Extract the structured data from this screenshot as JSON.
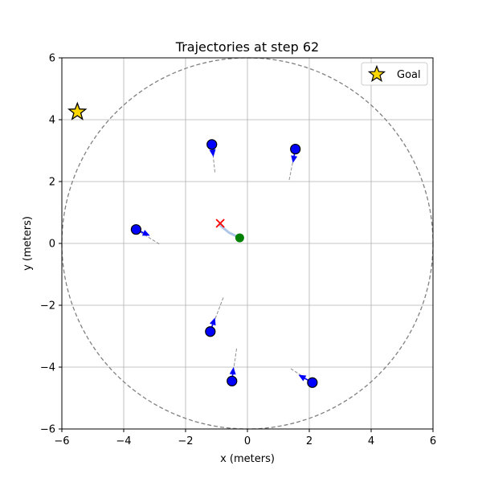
{
  "chart_data": {
    "type": "scatter",
    "title": "Trajectories at step 62",
    "xlabel": "x (meters)",
    "ylabel": "y (meters)",
    "xlim": [
      -6,
      6
    ],
    "ylim": [
      -6,
      6
    ],
    "xticks": [
      -6,
      -4,
      -2,
      0,
      2,
      4,
      6
    ],
    "yticks": [
      -6,
      -4,
      -2,
      0,
      2,
      4,
      6
    ],
    "xtick_labels": [
      "−6",
      "−4",
      "−2",
      "0",
      "2",
      "4",
      "6"
    ],
    "ytick_labels": [
      "−6",
      "−4",
      "−2",
      "0",
      "2",
      "4",
      "6"
    ],
    "grid": true,
    "legend": {
      "position": "top-right",
      "entries": [
        {
          "label": "Goal",
          "marker": "star",
          "color": "#ffd700"
        }
      ]
    },
    "boundary_circle": {
      "center": [
        0,
        0
      ],
      "radius": 6,
      "style": "dashed",
      "color": "#808080"
    },
    "goal": {
      "x": -5.5,
      "y": 4.25,
      "color": "#ffd700"
    },
    "ego_agent": {
      "x": -0.25,
      "y": 0.18,
      "color": "#008000",
      "trail": [
        [
          -0.9,
          0.6
        ],
        [
          -0.6,
          0.35
        ],
        [
          -0.25,
          0.18
        ]
      ],
      "trail_color": "#aec7e8"
    },
    "target_marker": {
      "x": -0.88,
      "y": 0.65,
      "color": "#ff0000",
      "marker": "x"
    },
    "agents": [
      {
        "x": -1.15,
        "y": 3.2,
        "vx": 0.05,
        "vy": -0.4,
        "trail_start": [
          -1.05,
          2.3
        ]
      },
      {
        "x": 1.55,
        "y": 3.05,
        "vx": -0.08,
        "vy": -0.45,
        "trail_start": [
          1.35,
          2.05
        ]
      },
      {
        "x": -3.6,
        "y": 0.45,
        "vx": 0.45,
        "vy": -0.2,
        "trail_start": [
          -2.85,
          -0.02
        ]
      },
      {
        "x": -1.2,
        "y": -2.85,
        "vx": 0.15,
        "vy": 0.45,
        "trail_start": [
          -0.78,
          -1.75
        ]
      },
      {
        "x": -0.5,
        "y": -4.45,
        "vx": 0.05,
        "vy": 0.45,
        "trail_start": [
          -0.35,
          -3.4
        ]
      },
      {
        "x": 2.1,
        "y": -4.5,
        "vx": -0.45,
        "vy": 0.25,
        "trail_start": [
          1.4,
          -4.05
        ]
      }
    ],
    "agent_color": "#0000ff"
  }
}
